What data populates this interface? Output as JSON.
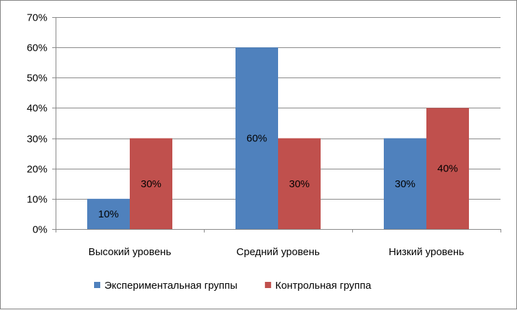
{
  "chart_data": {
    "type": "bar",
    "categories": [
      "Высокий уровень",
      "Средний уровень",
      "Низкий уровень"
    ],
    "series": [
      {
        "name": "Экспериментальная группы",
        "values": [
          10,
          60,
          30
        ],
        "color": "#4f81bd"
      },
      {
        "name": "Контрольная группа",
        "values": [
          30,
          30,
          40
        ],
        "color": "#c0504d"
      }
    ],
    "ylim": [
      0,
      70
    ],
    "yticks": [
      0,
      10,
      20,
      30,
      40,
      50,
      60,
      70
    ],
    "ytick_labels": [
      "0%",
      "10%",
      "20%",
      "30%",
      "40%",
      "50%",
      "60%",
      "70%"
    ],
    "data_labels": [
      [
        "10%",
        "60%",
        "30%"
      ],
      [
        "30%",
        "30%",
        "40%"
      ]
    ],
    "title": "",
    "xlabel": "",
    "ylabel": "",
    "grid": "horizontal",
    "legend_position": "bottom"
  }
}
